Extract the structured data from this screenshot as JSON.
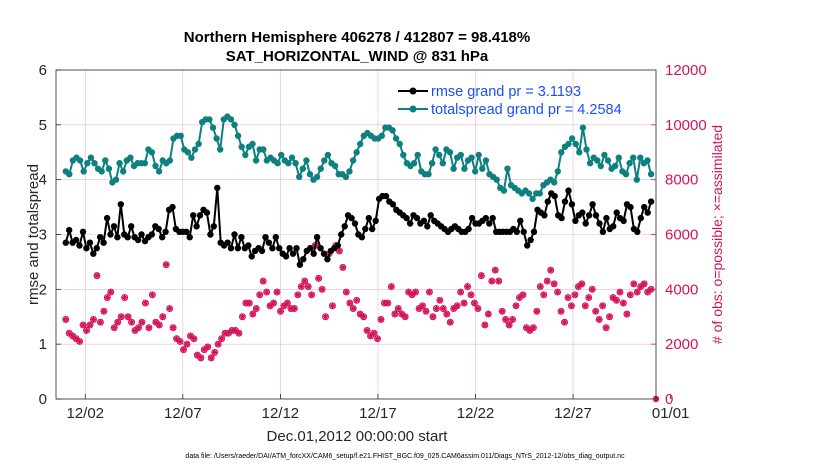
{
  "chart_data": {
    "type": "line",
    "title_line1": "Northern Hemisphere 406278 / 412807 = 98.418%",
    "title_line2": "SAT_HORIZONTAL_WIND @ 831 hPa",
    "xlabel": "Dec.01,2012 00:00:00 start",
    "ylabel_left": "rmse and totalspread",
    "ylabel_right": "# of obs: o=possible; ×=assimilated",
    "footer": "data file: /Users/raeder/DAI/ATM_forcXX/CAM6_setup/f.e21.FHIST_BGC.f09_025.CAM6assim.011/Diags_NTrS_2012-12/obs_diag_output.nc",
    "xlim": [
      0.5,
      31.25
    ],
    "ylim_left": [
      0,
      6
    ],
    "ylim_right": [
      0,
      12000
    ],
    "x_ticks": [
      2,
      7,
      12,
      17,
      22,
      27,
      32
    ],
    "x_tick_labels": [
      "12/02",
      "12/07",
      "12/12",
      "12/17",
      "12/22",
      "12/27",
      "01/01"
    ],
    "y_ticks_left": [
      "0",
      "1",
      "2",
      "3",
      "4",
      "5",
      "6"
    ],
    "y_ticks_right": [
      "0",
      "2000",
      "4000",
      "6000",
      "8000",
      "10000",
      "12000"
    ],
    "legend_position": "top-right",
    "grid": true,
    "colors": {
      "rmse": "#000000",
      "spread": "#0f8080",
      "obs": "#d4145a",
      "grid": "#e9b8cc"
    },
    "series": [
      {
        "name": "rmse grand pr = 3.1193",
        "axis": "left",
        "values": [
          2.85,
          3.08,
          2.85,
          2.9,
          2.8,
          3.05,
          2.75,
          2.85,
          2.65,
          2.75,
          2.95,
          2.85,
          3.3,
          3.0,
          3.15,
          2.95,
          3.55,
          3.0,
          2.95,
          3.15,
          2.95,
          2.9,
          3.0,
          2.88,
          2.95,
          3.0,
          3.15,
          3.1,
          2.95,
          3.05,
          3.45,
          3.5,
          3.1,
          3.05,
          3.05,
          3.05,
          2.95,
          3.35,
          3.15,
          3.35,
          3.45,
          3.4,
          3.0,
          3.15,
          3.85,
          2.85,
          2.8,
          2.85,
          2.75,
          3.0,
          2.75,
          2.95,
          2.75,
          2.8,
          2.6,
          2.7,
          2.75,
          2.7,
          2.95,
          2.85,
          2.75,
          2.95,
          2.75,
          2.65,
          2.6,
          2.75,
          2.65,
          2.75,
          2.45,
          2.55,
          2.7,
          2.75,
          2.65,
          2.95,
          2.75,
          2.65,
          2.55,
          2.7,
          2.75,
          2.8,
          3.0,
          3.15,
          3.35,
          3.3,
          3.2,
          3.0,
          2.95,
          3.1,
          3.3,
          3.1,
          3.25,
          3.65,
          3.7,
          3.7,
          3.6,
          3.55,
          3.45,
          3.4,
          3.35,
          3.3,
          3.2,
          3.35,
          3.3,
          3.2,
          3.25,
          3.15,
          3.35,
          3.25,
          3.2,
          3.15,
          3.1,
          3.05,
          3.1,
          3.15,
          3.1,
          3.05,
          3.05,
          3.1,
          3.3,
          3.2,
          3.2,
          3.25,
          3.3,
          3.2,
          3.3,
          3.05,
          3.05,
          3.05,
          3.05,
          3.05,
          3.1,
          3.05,
          3.25,
          3.05,
          2.8,
          2.9,
          3.05,
          3.45,
          3.4,
          3.35,
          3.6,
          3.75,
          3.7,
          3.35,
          3.3,
          3.6,
          3.8,
          3.55,
          3.25,
          3.35,
          3.4,
          3.2,
          3.35,
          3.55,
          3.35,
          3.2,
          3.05,
          3.3,
          3.1,
          3.15,
          3.4,
          3.3,
          3.25,
          3.55,
          3.5,
          3.1,
          3.05,
          3.3,
          3.5,
          3.4,
          3.6
        ]
      },
      {
        "name": "totalspread grand pr = 4.2584",
        "axis": "left",
        "values": [
          4.15,
          4.1,
          4.35,
          4.4,
          4.35,
          4.15,
          4.3,
          4.4,
          4.3,
          4.2,
          4.15,
          4.35,
          4.2,
          3.95,
          4.0,
          4.3,
          4.15,
          4.35,
          4.4,
          4.25,
          4.3,
          4.3,
          4.3,
          4.55,
          4.5,
          4.25,
          4.15,
          4.35,
          4.3,
          4.35,
          4.75,
          4.8,
          4.8,
          4.55,
          4.5,
          4.4,
          4.55,
          4.65,
          5.05,
          5.1,
          5.1,
          4.95,
          4.75,
          4.55,
          5.1,
          5.15,
          5.1,
          5.0,
          4.8,
          4.6,
          4.45,
          4.6,
          4.65,
          4.35,
          4.55,
          4.55,
          4.35,
          4.4,
          4.35,
          4.3,
          4.45,
          4.35,
          4.3,
          4.4,
          4.3,
          4.05,
          4.2,
          4.35,
          4.1,
          4.0,
          4.05,
          4.2,
          4.35,
          4.45,
          4.3,
          4.25,
          4.1,
          4.1,
          4.05,
          4.15,
          4.35,
          4.5,
          4.65,
          4.8,
          4.85,
          4.8,
          4.75,
          4.75,
          4.8,
          4.95,
          4.95,
          4.9,
          4.75,
          4.65,
          4.45,
          4.3,
          4.25,
          4.3,
          4.45,
          4.15,
          4.1,
          4.1,
          4.3,
          4.55,
          4.45,
          4.3,
          4.55,
          4.5,
          4.2,
          4.4,
          4.45,
          4.2,
          4.35,
          4.4,
          4.15,
          4.45,
          4.2,
          4.35,
          4.1,
          4.05,
          4.0,
          3.85,
          3.8,
          4.2,
          3.9,
          3.85,
          3.8,
          3.75,
          3.8,
          3.75,
          3.65,
          3.75,
          3.75,
          3.9,
          3.95,
          4.0,
          3.95,
          4.15,
          4.5,
          4.6,
          4.65,
          4.75,
          4.65,
          4.5,
          4.95,
          4.55,
          4.3,
          4.4,
          4.35,
          4.25,
          4.45,
          4.35,
          4.2,
          4.25,
          4.4,
          4.15,
          4.1,
          4.3,
          4.4,
          4.0,
          4.4,
          4.3,
          4.35,
          4.1
        ]
      },
      {
        "name": "obs assimilated",
        "axis": "right",
        "values": [
          2900,
          2400,
          2300,
          2200,
          2100,
          2700,
          2500,
          2700,
          2900,
          4500,
          2800,
          3200,
          3700,
          3900,
          2600,
          2800,
          3000,
          3700,
          3000,
          2800,
          2500,
          2600,
          2800,
          3500,
          2600,
          3800,
          2800,
          2700,
          3000,
          4900,
          3300,
          2600,
          2200,
          2100,
          1800,
          2000,
          2300,
          2200,
          1600,
          1500,
          1800,
          1900,
          1500,
          1700,
          2000,
          2200,
          2400,
          2400,
          2500,
          2500,
          2400,
          3000,
          3500,
          3500,
          3100,
          3300,
          3800,
          4300,
          3900,
          3400,
          3500,
          3900,
          3200,
          3400,
          3500,
          3300,
          3300,
          3800,
          4100,
          4300,
          4100,
          3800,
          5600,
          4400,
          4000,
          3000,
          5300,
          3400,
          5600,
          5400,
          4800,
          3900,
          3500,
          3300,
          3600,
          3100,
          3000,
          2500,
          2300,
          2400,
          2200,
          2900,
          3500,
          3500,
          4100,
          3100,
          3300,
          3100,
          3000,
          3900,
          3800,
          3900,
          3300,
          3400,
          3200,
          3900,
          3000,
          3300,
          3600,
          3300,
          3100,
          2800,
          3300,
          3400,
          3900,
          3500,
          4100,
          3800,
          3500,
          3300,
          4500,
          2700,
          3100,
          4300,
          4700,
          4300,
          3200,
          2900,
          2700,
          2900,
          3400,
          3700,
          3800,
          2600,
          2500,
          2600,
          3200,
          4100,
          3800,
          4300,
          4700,
          4200,
          3900,
          3200,
          2800,
          3700,
          3400,
          3800,
          4100,
          4200,
          3400,
          3700,
          4000,
          3200,
          2900,
          3400,
          2600,
          3000,
          3700,
          3600,
          3900,
          3500,
          3100,
          3800,
          4200,
          3900,
          4100,
          4200,
          3900,
          4000
        ]
      },
      {
        "name": "obs possible",
        "axis": "right",
        "values": [
          2900,
          2400,
          2300,
          2200,
          2100,
          2700,
          2500,
          2700,
          2900,
          4500,
          2800,
          3200,
          3700,
          3900,
          2600,
          2800,
          3000,
          3700,
          3000,
          2800,
          2500,
          2600,
          2800,
          3500,
          2600,
          3800,
          2800,
          2700,
          3000,
          4900,
          3300,
          2600,
          2200,
          2100,
          1800,
          2000,
          2300,
          2200,
          1600,
          1500,
          1800,
          1900,
          1500,
          1700,
          2000,
          2200,
          2400,
          2400,
          2500,
          2500,
          2400,
          3000,
          3500,
          3500,
          3100,
          3300,
          3800,
          4300,
          3900,
          3400,
          3500,
          3900,
          3200,
          3400,
          3500,
          3300,
          3300,
          3800,
          4100,
          4300,
          4100,
          3800,
          5600,
          4400,
          4000,
          3000,
          5300,
          3400,
          5600,
          5400,
          4800,
          3900,
          3500,
          3300,
          3600,
          3100,
          3000,
          2500,
          2300,
          2400,
          2200,
          2900,
          3500,
          3500,
          4100,
          3100,
          3300,
          3100,
          3000,
          3900,
          3800,
          3900,
          3300,
          3400,
          3200,
          3900,
          3000,
          3300,
          3600,
          3300,
          3100,
          2800,
          3300,
          3400,
          3900,
          3500,
          4100,
          3800,
          3500,
          3300,
          4500,
          2700,
          3100,
          4300,
          4700,
          4300,
          3200,
          2900,
          2700,
          2900,
          3400,
          3700,
          3800,
          2600,
          2500,
          2600,
          3200,
          4100,
          3800,
          4300,
          4700,
          4200,
          3900,
          3200,
          2800,
          3700,
          3400,
          3800,
          4100,
          4200,
          3400,
          3700,
          4000,
          3200,
          2900,
          3400,
          2600,
          3000,
          3700,
          3600,
          3900,
          3500,
          3100,
          3800,
          4200,
          3900,
          4100,
          4200,
          3900,
          4000
        ]
      }
    ]
  }
}
